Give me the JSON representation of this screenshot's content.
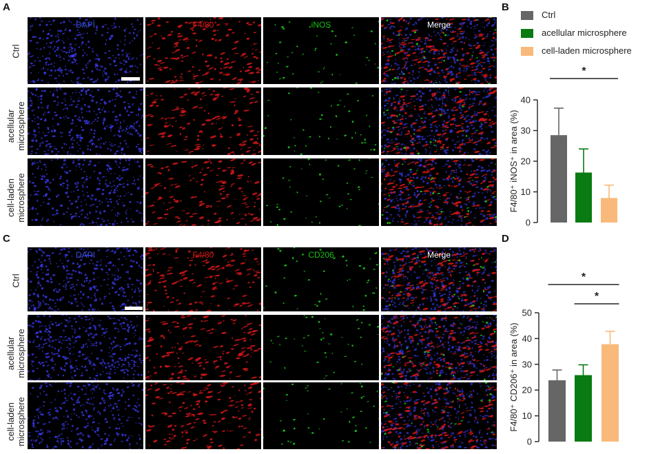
{
  "panels": {
    "A": {
      "letter": "A",
      "channels": [
        "DAPI",
        "F4/80",
        "iNOS",
        "Merge"
      ],
      "rows": [
        "Ctrl",
        "acellular microsphere",
        "cell-laden microsphere"
      ]
    },
    "B": {
      "letter": "B"
    },
    "C": {
      "letter": "C",
      "channels": [
        "DAPI",
        "F4/80",
        "CD206",
        "Merge"
      ],
      "rows": [
        "Ctrl",
        "acellular microsphere",
        "cell-laden microsphere"
      ]
    },
    "D": {
      "letter": "D"
    }
  },
  "legend": [
    {
      "label": "Ctrl",
      "color": "#666666"
    },
    {
      "label": "acellular microsphere",
      "color": "#0a7a12"
    },
    {
      "label": "cell-laden microsphere",
      "color": "#f9b97a"
    }
  ],
  "colors": {
    "dapi": "#3b3bf0",
    "f480": "#e01818",
    "green": "#18c018",
    "label_dapi": "#3a4fd8",
    "label_f480": "#e01818",
    "label_green": "#18c018",
    "label_merge": "#ffffff"
  },
  "chart_data": [
    {
      "type": "bar",
      "panel": "B",
      "categories": [
        "Ctrl",
        "acellular microsphere",
        "cell-laden microsphere"
      ],
      "values": [
        28.5,
        16.3,
        8.0
      ],
      "errors": [
        8.8,
        7.7,
        4.2
      ],
      "colors": [
        "#666666",
        "#0a7a12",
        "#f9b97a"
      ],
      "ylabel": "F4/80⁺ iNOS⁺ in area (%)",
      "ylim": [
        0,
        40
      ],
      "yticks": [
        0,
        10,
        20,
        30,
        40
      ],
      "significance": [
        {
          "from": 0,
          "to": 2,
          "label": "*"
        }
      ]
    },
    {
      "type": "bar",
      "panel": "D",
      "categories": [
        "Ctrl",
        "acellular microsphere",
        "cell-laden microsphere"
      ],
      "values": [
        23.8,
        25.8,
        37.8
      ],
      "errors": [
        4.0,
        4.0,
        5.0
      ],
      "colors": [
        "#666666",
        "#0a7a12",
        "#f9b97a"
      ],
      "ylabel": "F4/80⁺ CD206⁺ in area (%)",
      "ylim": [
        0,
        50
      ],
      "yticks": [
        0,
        10,
        20,
        30,
        40,
        50
      ],
      "significance": [
        {
          "from": 0,
          "to": 2,
          "label": "*"
        },
        {
          "from": 1,
          "to": 2,
          "label": "*"
        }
      ]
    }
  ]
}
